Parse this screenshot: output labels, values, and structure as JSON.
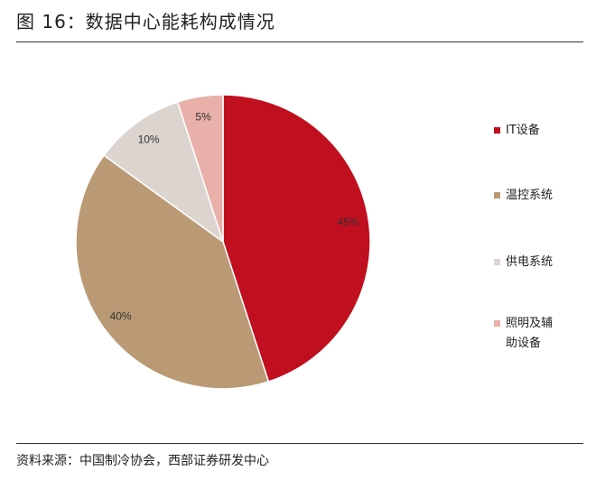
{
  "title": "图 16：数据中心能耗构成情况",
  "source": "资料来源：中国制冷协会，西部证券研发中心",
  "chart_data": {
    "type": "pie",
    "title": "数据中心能耗构成情况",
    "categories": [
      "IT设备",
      "温控系统",
      "供电系统",
      "照明及辅助设备"
    ],
    "values": [
      45,
      40,
      10,
      5
    ],
    "labels": [
      "45%",
      "40%",
      "10%",
      "5%"
    ],
    "colors": [
      "#C00F1E",
      "#B99A74",
      "#DCD5CF",
      "#E8B0A8"
    ],
    "legend_position": "right"
  }
}
